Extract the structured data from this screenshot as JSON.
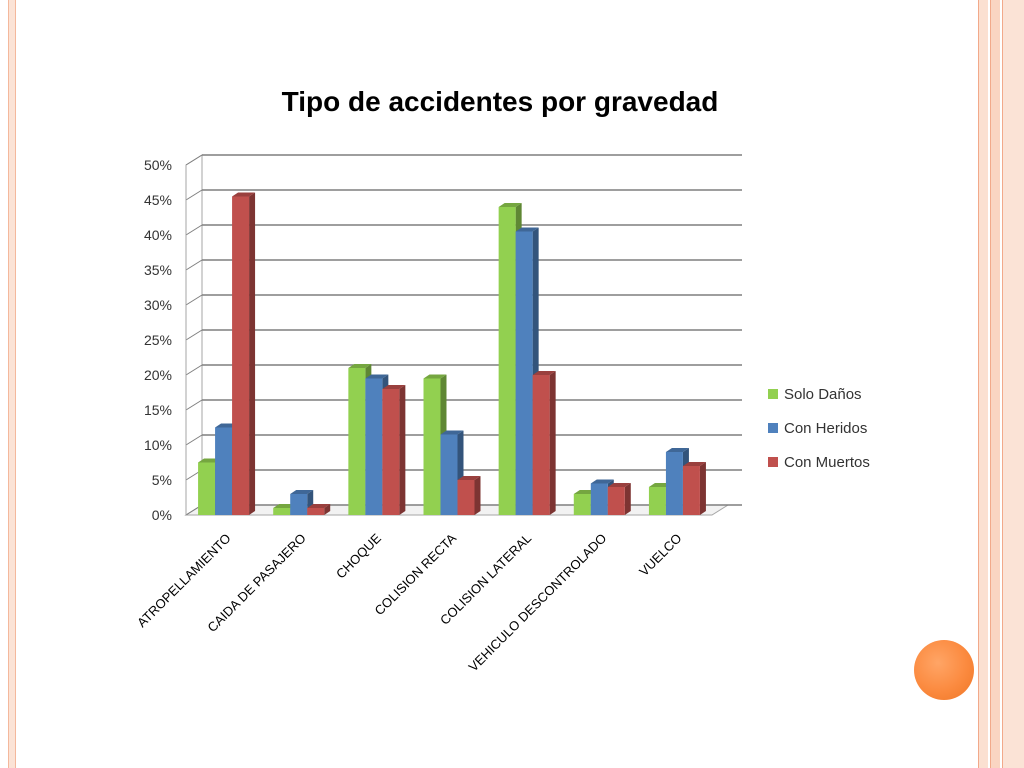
{
  "slide": {
    "accent_orb_color": "#fb8a3f",
    "border_color": "#f4b89c"
  },
  "chart_data": {
    "type": "bar",
    "style": "3d-clustered-column",
    "title": "Tipo de accidentes por gravedad",
    "categories": [
      "ATROPELLAMIENTO",
      "CAIDA DE PASAJERO",
      "CHOQUE",
      "COLISION RECTA",
      "COLISION LATERAL",
      "VEHICULO DESCONTROLADO",
      "VUELCO"
    ],
    "series": [
      {
        "name": "Solo Daños",
        "color": "#92d050",
        "values": [
          7.5,
          1.0,
          21.0,
          19.5,
          44.0,
          3.0,
          4.0
        ]
      },
      {
        "name": "Con Heridos",
        "color": "#4f81bd",
        "values": [
          12.5,
          3.0,
          19.5,
          11.5,
          40.5,
          4.5,
          9.0
        ]
      },
      {
        "name": "Con Muertos",
        "color": "#c0504d",
        "values": [
          45.5,
          1.0,
          18.0,
          5.0,
          20.0,
          4.0,
          7.0
        ]
      }
    ],
    "yticks": [
      "0%",
      "5%",
      "10%",
      "15%",
      "20%",
      "25%",
      "30%",
      "35%",
      "40%",
      "45%",
      "50%"
    ],
    "ylim": [
      0,
      50
    ],
    "grid": true,
    "legend_position": "right"
  }
}
